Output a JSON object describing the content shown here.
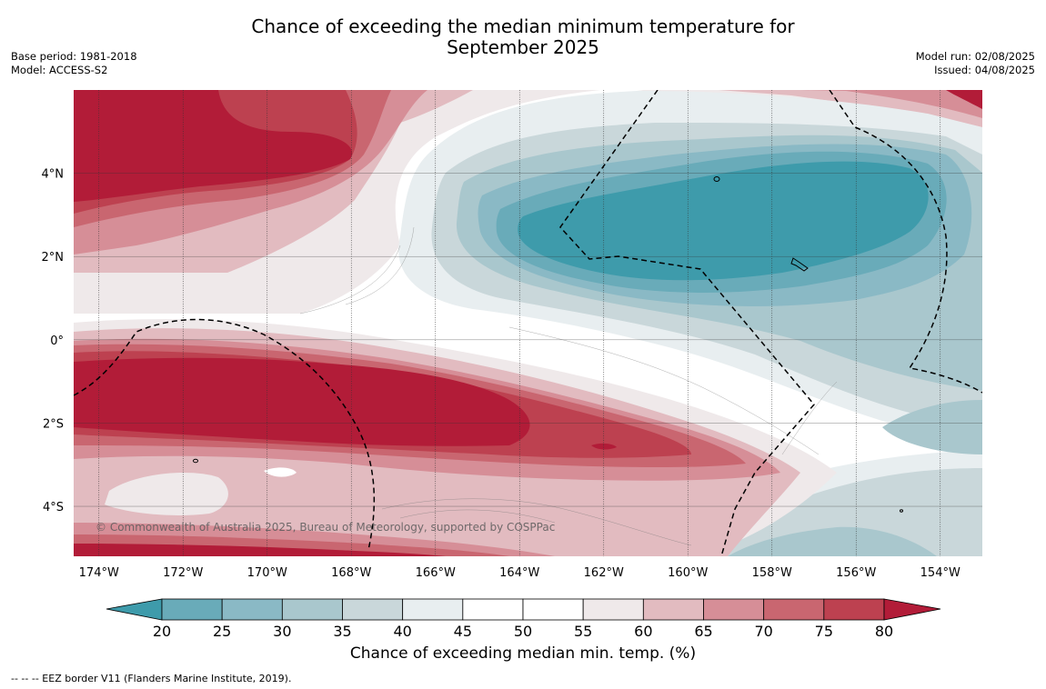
{
  "title_line1": "Chance of exceeding the median minimum temperature for",
  "title_line2": "September 2025",
  "meta_left": {
    "base_period": "Base period: 1981-2018",
    "model": "Model: ACCESS-S2"
  },
  "meta_right": {
    "model_run": "Model run: 02/08/2025",
    "issued": "Issued: 04/08/2025"
  },
  "copyright": "© Commonwealth of Australia 2025, Bureau of Meteorology, supported by COSPPac",
  "footer": "--  --  -- EEZ border V11 (Flanders Marine Institute, 2019).",
  "map": {
    "lon_range": [
      -174.6,
      -153.0
    ],
    "lat_range": [
      -5.2,
      6.0
    ],
    "lon_ticks": [
      {
        "value": -174,
        "label": "174°W"
      },
      {
        "value": -172,
        "label": "172°W"
      },
      {
        "value": -170,
        "label": "170°W"
      },
      {
        "value": -168,
        "label": "168°W"
      },
      {
        "value": -166,
        "label": "166°W"
      },
      {
        "value": -164,
        "label": "164°W"
      },
      {
        "value": -162,
        "label": "162°W"
      },
      {
        "value": -160,
        "label": "160°W"
      },
      {
        "value": -158,
        "label": "158°W"
      },
      {
        "value": -156,
        "label": "156°W"
      },
      {
        "value": -154,
        "label": "154°W"
      }
    ],
    "lat_ticks": [
      {
        "value": 4,
        "label": "4°N"
      },
      {
        "value": 2,
        "label": "2°N"
      },
      {
        "value": 0,
        "label": "0°"
      },
      {
        "value": -2,
        "label": "2°S"
      },
      {
        "value": -4,
        "label": "4°S"
      }
    ]
  },
  "colorbar": {
    "title": "Chance of exceeding median min. temp. (%)",
    "ticks": [
      "20",
      "25",
      "30",
      "35",
      "40",
      "45",
      "50",
      "55",
      "60",
      "65",
      "70",
      "75",
      "80"
    ],
    "low_extend_color": "#3e9bab",
    "high_extend_color": "#b21c38",
    "bin_colors": [
      "#69abb9",
      "#8ab9c5",
      "#a9c7cd",
      "#c9d7da",
      "#e8eef0",
      "#ffffff",
      "#ffffff",
      "#efe9ea",
      "#e2bbc0",
      "#d68e97",
      "#c96670",
      "#bd4150"
    ]
  }
}
